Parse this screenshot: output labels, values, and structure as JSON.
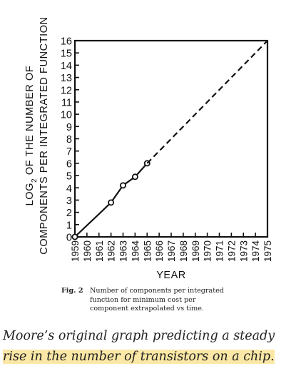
{
  "chart_data": {
    "type": "line",
    "ylabel_line1_pre": "LOG",
    "ylabel_subscript": "2",
    "ylabel_line1_post": " OF THE NUMBER OF",
    "ylabel_line2": "COMPONENTS PER INTEGRATED FUNCTION",
    "xlabel": "YEAR",
    "xlim": [
      1959,
      1975
    ],
    "ylim": [
      0,
      16
    ],
    "x_ticks": [
      "1959",
      "1960",
      "1961",
      "1962",
      "1963",
      "1964",
      "1965",
      "1966",
      "1967",
      "1968",
      "1969",
      "1970",
      "1971",
      "1972",
      "1973",
      "1974",
      "1975"
    ],
    "y_ticks": [
      "0",
      "1",
      "2",
      "3",
      "4",
      "5",
      "6",
      "7",
      "8",
      "9",
      "10",
      "11",
      "12",
      "13",
      "14",
      "15",
      "16"
    ],
    "series": [
      {
        "style": "solid",
        "markers": true,
        "x": [
          1959,
          1962,
          1963,
          1964,
          1965
        ],
        "y": [
          0,
          2.8,
          4.2,
          4.9,
          6.0
        ]
      },
      {
        "style": "dashed",
        "markers": false,
        "x": [
          1965,
          1975
        ],
        "y": [
          6.0,
          16
        ]
      }
    ]
  },
  "figure_caption": {
    "label": "Fig. 2",
    "text": "Number of components per integrated function for minimum cost per component extrapolated vs time."
  },
  "photo_caption": {
    "part1": "Moore’s original graph predicting a steady",
    "part2": "rise in the number of transistors on a chip."
  }
}
